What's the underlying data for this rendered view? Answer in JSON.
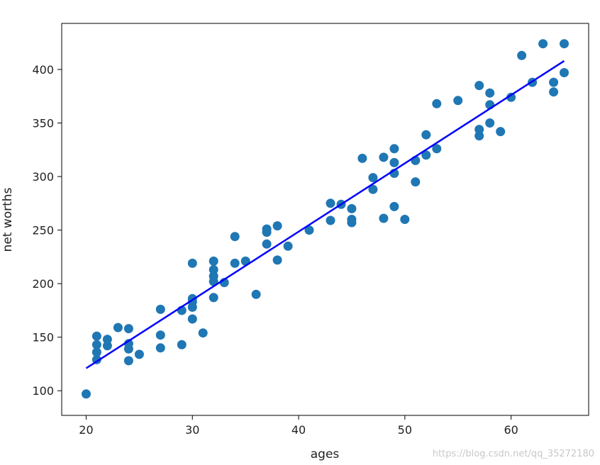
{
  "chart_data": {
    "type": "scatter",
    "xlabel": "ages",
    "ylabel": "net worths",
    "xlim": [
      17.7,
      67.3
    ],
    "ylim": [
      77,
      443
    ],
    "xticks": [
      20,
      30,
      40,
      50,
      60
    ],
    "yticks": [
      100,
      150,
      200,
      250,
      300,
      350,
      400
    ],
    "grid": false,
    "series": [
      {
        "type": "scatter",
        "color": "#1f77b4",
        "points": [
          [
            20,
            97
          ],
          [
            21,
            129
          ],
          [
            21,
            136
          ],
          [
            21,
            143
          ],
          [
            21,
            151
          ],
          [
            22,
            142
          ],
          [
            22,
            148
          ],
          [
            23,
            159
          ],
          [
            24,
            128
          ],
          [
            24,
            139
          ],
          [
            24,
            144
          ],
          [
            24,
            158
          ],
          [
            25,
            134
          ],
          [
            27,
            140
          ],
          [
            27,
            152
          ],
          [
            27,
            176
          ],
          [
            29,
            143
          ],
          [
            29,
            175
          ],
          [
            30,
            167
          ],
          [
            30,
            178
          ],
          [
            30,
            183
          ],
          [
            30,
            186
          ],
          [
            30,
            219
          ],
          [
            31,
            154
          ],
          [
            32,
            187
          ],
          [
            32,
            202
          ],
          [
            32,
            207
          ],
          [
            32,
            213
          ],
          [
            32,
            221
          ],
          [
            33,
            201
          ],
          [
            34,
            219
          ],
          [
            34,
            244
          ],
          [
            35,
            221
          ],
          [
            36,
            190
          ],
          [
            37,
            237
          ],
          [
            37,
            248
          ],
          [
            37,
            251
          ],
          [
            38,
            222
          ],
          [
            38,
            254
          ],
          [
            39,
            235
          ],
          [
            41,
            250
          ],
          [
            43,
            259
          ],
          [
            43,
            275
          ],
          [
            44,
            274
          ],
          [
            45,
            257
          ],
          [
            45,
            260
          ],
          [
            45,
            270
          ],
          [
            46,
            317
          ],
          [
            47,
            288
          ],
          [
            47,
            299
          ],
          [
            48,
            261
          ],
          [
            48,
            318
          ],
          [
            49,
            272
          ],
          [
            49,
            303
          ],
          [
            49,
            313
          ],
          [
            49,
            326
          ],
          [
            50,
            260
          ],
          [
            51,
            295
          ],
          [
            51,
            315
          ],
          [
            52,
            320
          ],
          [
            52,
            339
          ],
          [
            53,
            326
          ],
          [
            53,
            368
          ],
          [
            55,
            371
          ],
          [
            57,
            338
          ],
          [
            57,
            344
          ],
          [
            57,
            385
          ],
          [
            58,
            350
          ],
          [
            58,
            367
          ],
          [
            58,
            378
          ],
          [
            59,
            342
          ],
          [
            60,
            374
          ],
          [
            61,
            413
          ],
          [
            62,
            388
          ],
          [
            63,
            424
          ],
          [
            64,
            379
          ],
          [
            64,
            388
          ],
          [
            65,
            397
          ],
          [
            65,
            424
          ]
        ]
      },
      {
        "type": "line",
        "color": "#0000ff",
        "points": [
          [
            20,
            121
          ],
          [
            65,
            408
          ]
        ]
      }
    ]
  },
  "watermark": "https://blog.csdn.net/qq_35272180"
}
